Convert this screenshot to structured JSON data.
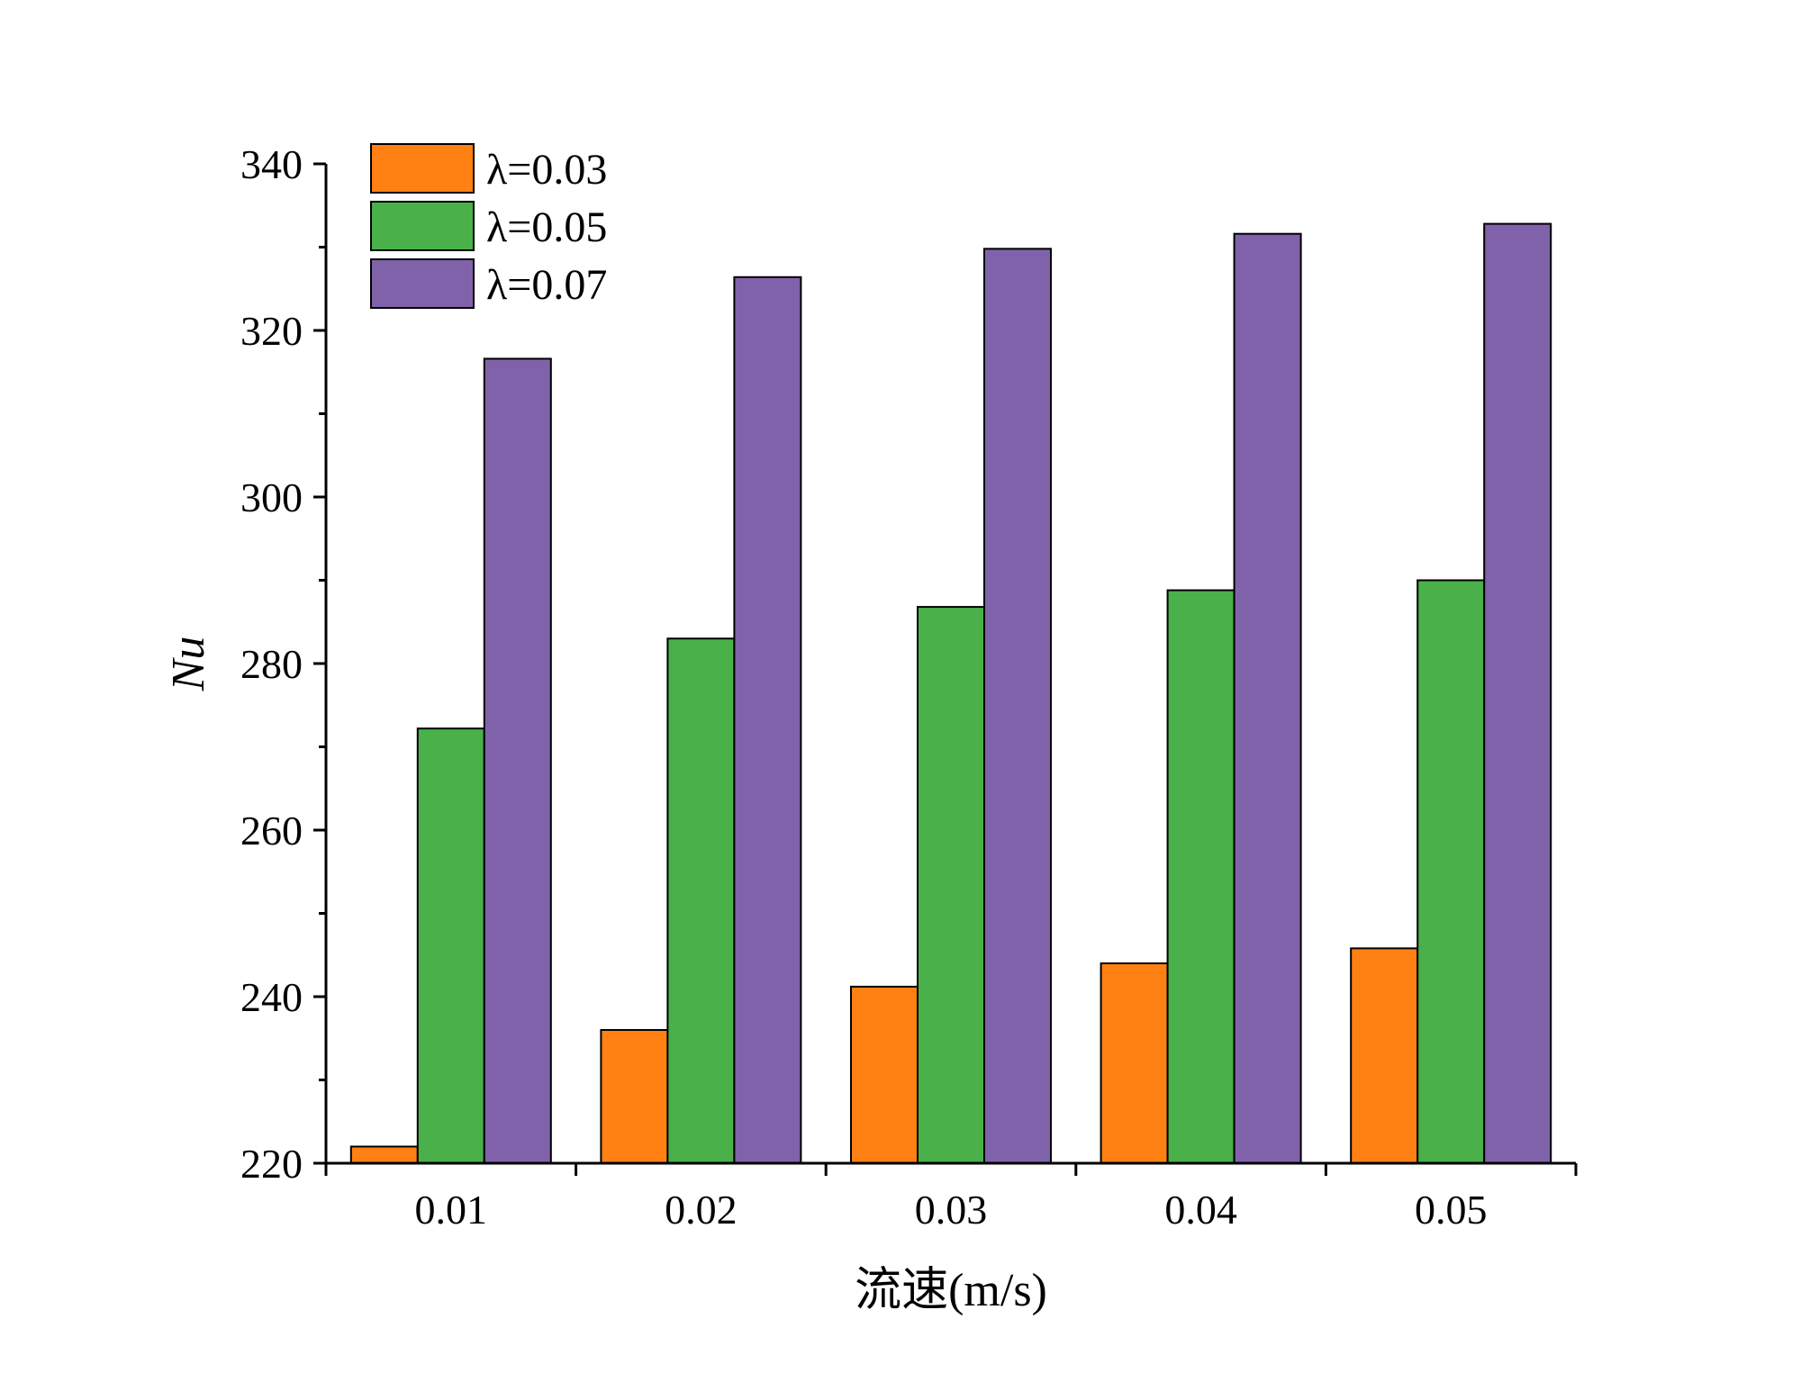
{
  "chart_data": {
    "type": "bar",
    "title": "",
    "xlabel": "流速(m/s)",
    "ylabel": "Nu",
    "ylim": [
      220,
      340
    ],
    "yticks": [
      "220",
      "240",
      "260",
      "280",
      "300",
      "320",
      "340"
    ],
    "categories": [
      "0.01",
      "0.02",
      "0.03",
      "0.04",
      "0.05"
    ],
    "series": [
      {
        "name": "λ=0.03",
        "color": "#FF8114",
        "values": [
          222,
          236,
          241.2,
          244,
          245.8
        ]
      },
      {
        "name": "λ=0.05",
        "color": "#49B04A",
        "values": [
          272.2,
          283,
          286.8,
          288.8,
          290
        ]
      },
      {
        "name": "λ=0.07",
        "color": "#8062AA",
        "values": [
          316.6,
          326.4,
          329.8,
          331.6,
          332.8
        ]
      }
    ],
    "legend_position": "top-left",
    "grid": false
  }
}
